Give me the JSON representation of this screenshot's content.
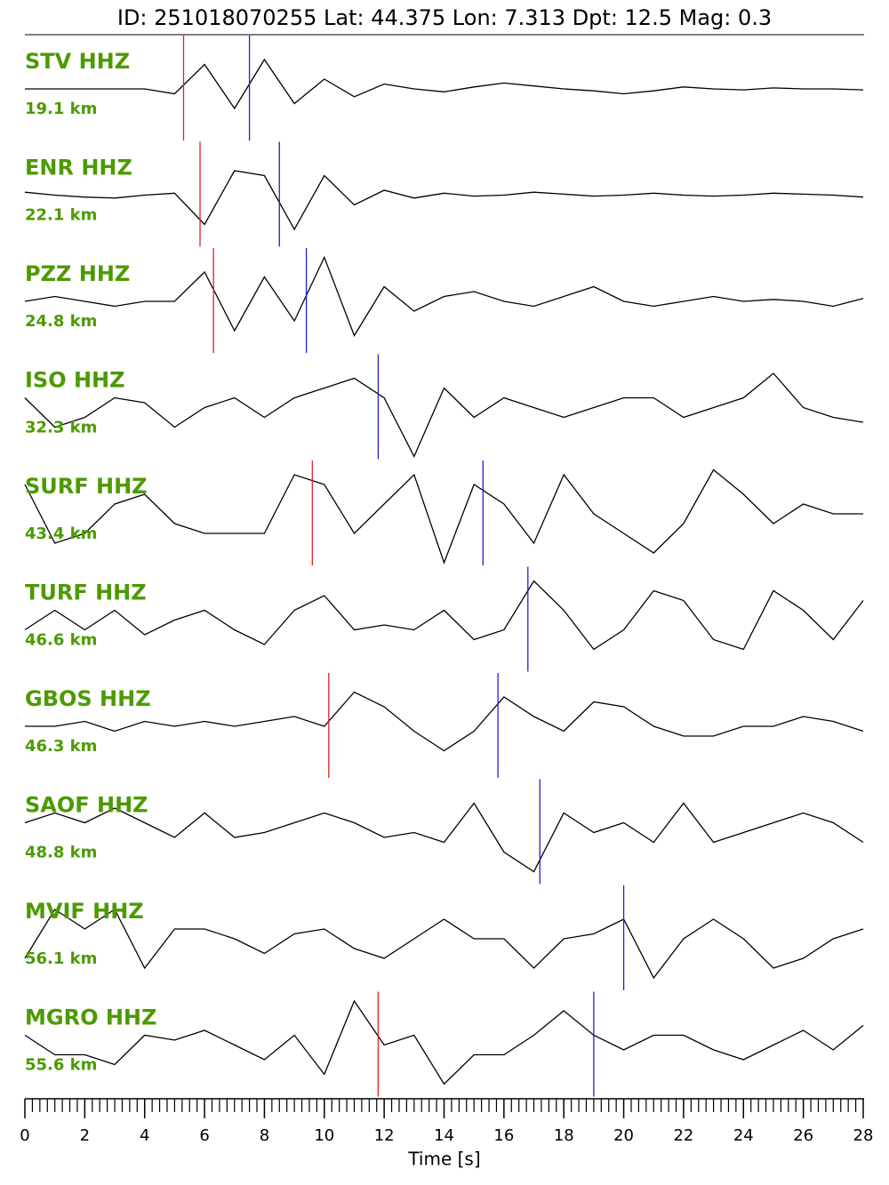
{
  "chart_data": {
    "type": "seismogram",
    "title": "ID: 251018070255 Lat:  44.375 Lon:   7.313 Dpt:    12.5 Mag:   0.3",
    "xlabel": "Time [s]",
    "xlim": [
      0,
      28
    ],
    "xticks": [
      0,
      2,
      4,
      6,
      8,
      10,
      12,
      14,
      16,
      18,
      20,
      22,
      24,
      26,
      28
    ],
    "minor_xticks": [
      0.25,
      0.5,
      0.75,
      1,
      1.25,
      1.5,
      1.75,
      2.25,
      2.5,
      2.75,
      3,
      3.25,
      3.5,
      3.75,
      4.25,
      4.5,
      4.75,
      5,
      5.25,
      5.5,
      5.75,
      6.25,
      6.5,
      6.75,
      7,
      7.25,
      7.5,
      7.75,
      8.25,
      8.5,
      8.75,
      9,
      9.25,
      9.5,
      9.75,
      10.25,
      10.5,
      10.75,
      11,
      11.25,
      11.5,
      11.75,
      12.25,
      12.5,
      12.75,
      13,
      13.25,
      13.5,
      13.75,
      14.25,
      14.5,
      14.75,
      15,
      15.25,
      15.5,
      15.75,
      16.25,
      16.5,
      16.75,
      17,
      17.25,
      17.5,
      17.75,
      18.25,
      18.5,
      18.75,
      19,
      19.25,
      19.5,
      19.75,
      20.25,
      20.5,
      20.75,
      21,
      21.25,
      21.5,
      21.75,
      22.25,
      22.5,
      22.75,
      23,
      23.25,
      23.5,
      23.75,
      24.25,
      24.5,
      24.75,
      25,
      25.25,
      25.5,
      25.75,
      26.25,
      26.5,
      26.75,
      27,
      27.25,
      27.5,
      27.75
    ],
    "x": [
      0,
      1,
      2,
      3,
      4,
      5,
      6,
      7,
      8,
      9,
      10,
      11,
      12,
      13,
      14,
      15,
      16,
      17,
      18,
      19,
      20,
      21,
      22,
      23,
      24,
      25,
      26,
      27,
      28
    ],
    "trace_color": "#000000",
    "p_color": "#e02020",
    "s_color": "#2020d0",
    "label_color": "#4c9a00",
    "series": [
      {
        "name": "STV HHZ",
        "distance": "19.1 km",
        "p_pick": 5.3,
        "s_pick": 7.5,
        "values": [
          0,
          0,
          0,
          0,
          0,
          -0.05,
          0.25,
          -0.2,
          0.3,
          -0.15,
          0.1,
          -0.08,
          0.05,
          0,
          -0.03,
          0.02,
          0.06,
          0.03,
          0,
          -0.02,
          -0.05,
          -0.02,
          0.02,
          0,
          -0.01,
          0.01,
          0,
          0,
          -0.01
        ]
      },
      {
        "name": "ENR HHZ",
        "distance": "22.1 km",
        "p_pick": 5.85,
        "s_pick": 8.5,
        "values": [
          0.03,
          0,
          -0.02,
          -0.03,
          0,
          0.02,
          -0.3,
          0.25,
          0.2,
          -0.35,
          0.2,
          -0.1,
          0.05,
          -0.03,
          0.02,
          -0.01,
          0,
          0.03,
          0.01,
          -0.01,
          0,
          0.02,
          0,
          -0.01,
          0,
          0.02,
          0.01,
          0,
          -0.02
        ]
      },
      {
        "name": "PZZ HHZ",
        "distance": "24.8 km",
        "p_pick": 6.3,
        "s_pick": 9.4,
        "values": [
          0,
          0.05,
          0,
          -0.05,
          0,
          0,
          0.3,
          -0.3,
          0.25,
          -0.2,
          0.45,
          -0.35,
          0.15,
          -0.1,
          0.05,
          0.1,
          0,
          -0.05,
          0.05,
          0.15,
          0,
          -0.05,
          0,
          0.05,
          0,
          0.02,
          0,
          -0.05,
          0.03
        ]
      },
      {
        "name": "ISO HHZ",
        "distance": "32.3 km",
        "s_pick": 11.8,
        "values": [
          0.1,
          -0.2,
          -0.1,
          0.1,
          0.05,
          -0.2,
          0,
          0.1,
          -0.1,
          0.1,
          0.2,
          0.3,
          0.1,
          -0.5,
          0.2,
          -0.1,
          0.1,
          0,
          -0.1,
          0,
          0.1,
          0.1,
          -0.1,
          0,
          0.1,
          0.35,
          0,
          -0.1,
          -0.15
        ]
      },
      {
        "name": "SURF HHZ",
        "distance": "43.4 km",
        "p_pick": 9.6,
        "s_pick": 15.3,
        "values": [
          0.3,
          -0.3,
          -0.2,
          0.1,
          0.2,
          -0.1,
          -0.2,
          -0.2,
          -0.2,
          0.4,
          0.3,
          -0.2,
          0.1,
          0.4,
          -0.5,
          0.3,
          0.1,
          -0.3,
          0.4,
          0,
          -0.2,
          -0.4,
          -0.1,
          0.45,
          0.2,
          -0.1,
          0.1,
          0,
          0
        ]
      },
      {
        "name": "TURF HHZ",
        "distance": "46.6 km",
        "s_pick": 16.8,
        "values": [
          -0.1,
          0.1,
          -0.1,
          0.1,
          -0.15,
          0,
          0.1,
          -0.1,
          -0.25,
          0.1,
          0.25,
          -0.1,
          -0.05,
          -0.1,
          0.1,
          -0.2,
          -0.1,
          0.4,
          0.1,
          -0.3,
          -0.1,
          0.3,
          0.2,
          -0.2,
          -0.3,
          0.3,
          0.1,
          -0.2,
          0.2
        ]
      },
      {
        "name": "GBOS HHZ",
        "distance": "46.3 km",
        "p_pick": 10.15,
        "s_pick": 15.8,
        "values": [
          0,
          0,
          0.05,
          -0.05,
          0.05,
          0,
          0.05,
          0,
          0.05,
          0.1,
          0,
          0.35,
          0.2,
          -0.05,
          -0.25,
          -0.05,
          0.3,
          0.1,
          -0.05,
          0.25,
          0.2,
          0,
          -0.1,
          -0.1,
          0,
          0,
          0.1,
          0.05,
          -0.05
        ]
      },
      {
        "name": "SAOF HHZ",
        "distance": "48.8 km",
        "s_pick": 17.2,
        "values": [
          0.1,
          0.2,
          0.1,
          0.25,
          0.1,
          -0.05,
          0.2,
          -0.05,
          0,
          0.1,
          0.2,
          0.1,
          -0.05,
          0,
          -0.1,
          0.3,
          -0.2,
          -0.4,
          0.2,
          0,
          0.1,
          -0.1,
          0.3,
          -0.1,
          0,
          0.1,
          0.2,
          0.1,
          -0.1
        ]
      },
      {
        "name": "MVIF HHZ",
        "distance": "56.1 km",
        "s_pick": 20.0,
        "values": [
          -0.2,
          0.3,
          0.1,
          0.3,
          -0.3,
          0.1,
          0.1,
          0,
          -0.15,
          0.05,
          0.1,
          -0.1,
          -0.2,
          0,
          0.2,
          0,
          0,
          -0.3,
          0,
          0.05,
          0.2,
          -0.4,
          0,
          0.2,
          0,
          -0.3,
          -0.2,
          0,
          0.1
        ]
      },
      {
        "name": "MGRO HHZ",
        "distance": "55.6 km",
        "p_pick": 11.8,
        "s_pick": 19.0,
        "values": [
          0.1,
          -0.1,
          -0.1,
          -0.2,
          0.1,
          0.05,
          0.15,
          0,
          -0.15,
          0.1,
          -0.3,
          0.45,
          0,
          0.1,
          -0.4,
          -0.1,
          -0.1,
          0.1,
          0.35,
          0.1,
          -0.05,
          0.1,
          0.1,
          -0.05,
          -0.15,
          0,
          0.15,
          -0.05,
          0.2
        ]
      }
    ]
  }
}
